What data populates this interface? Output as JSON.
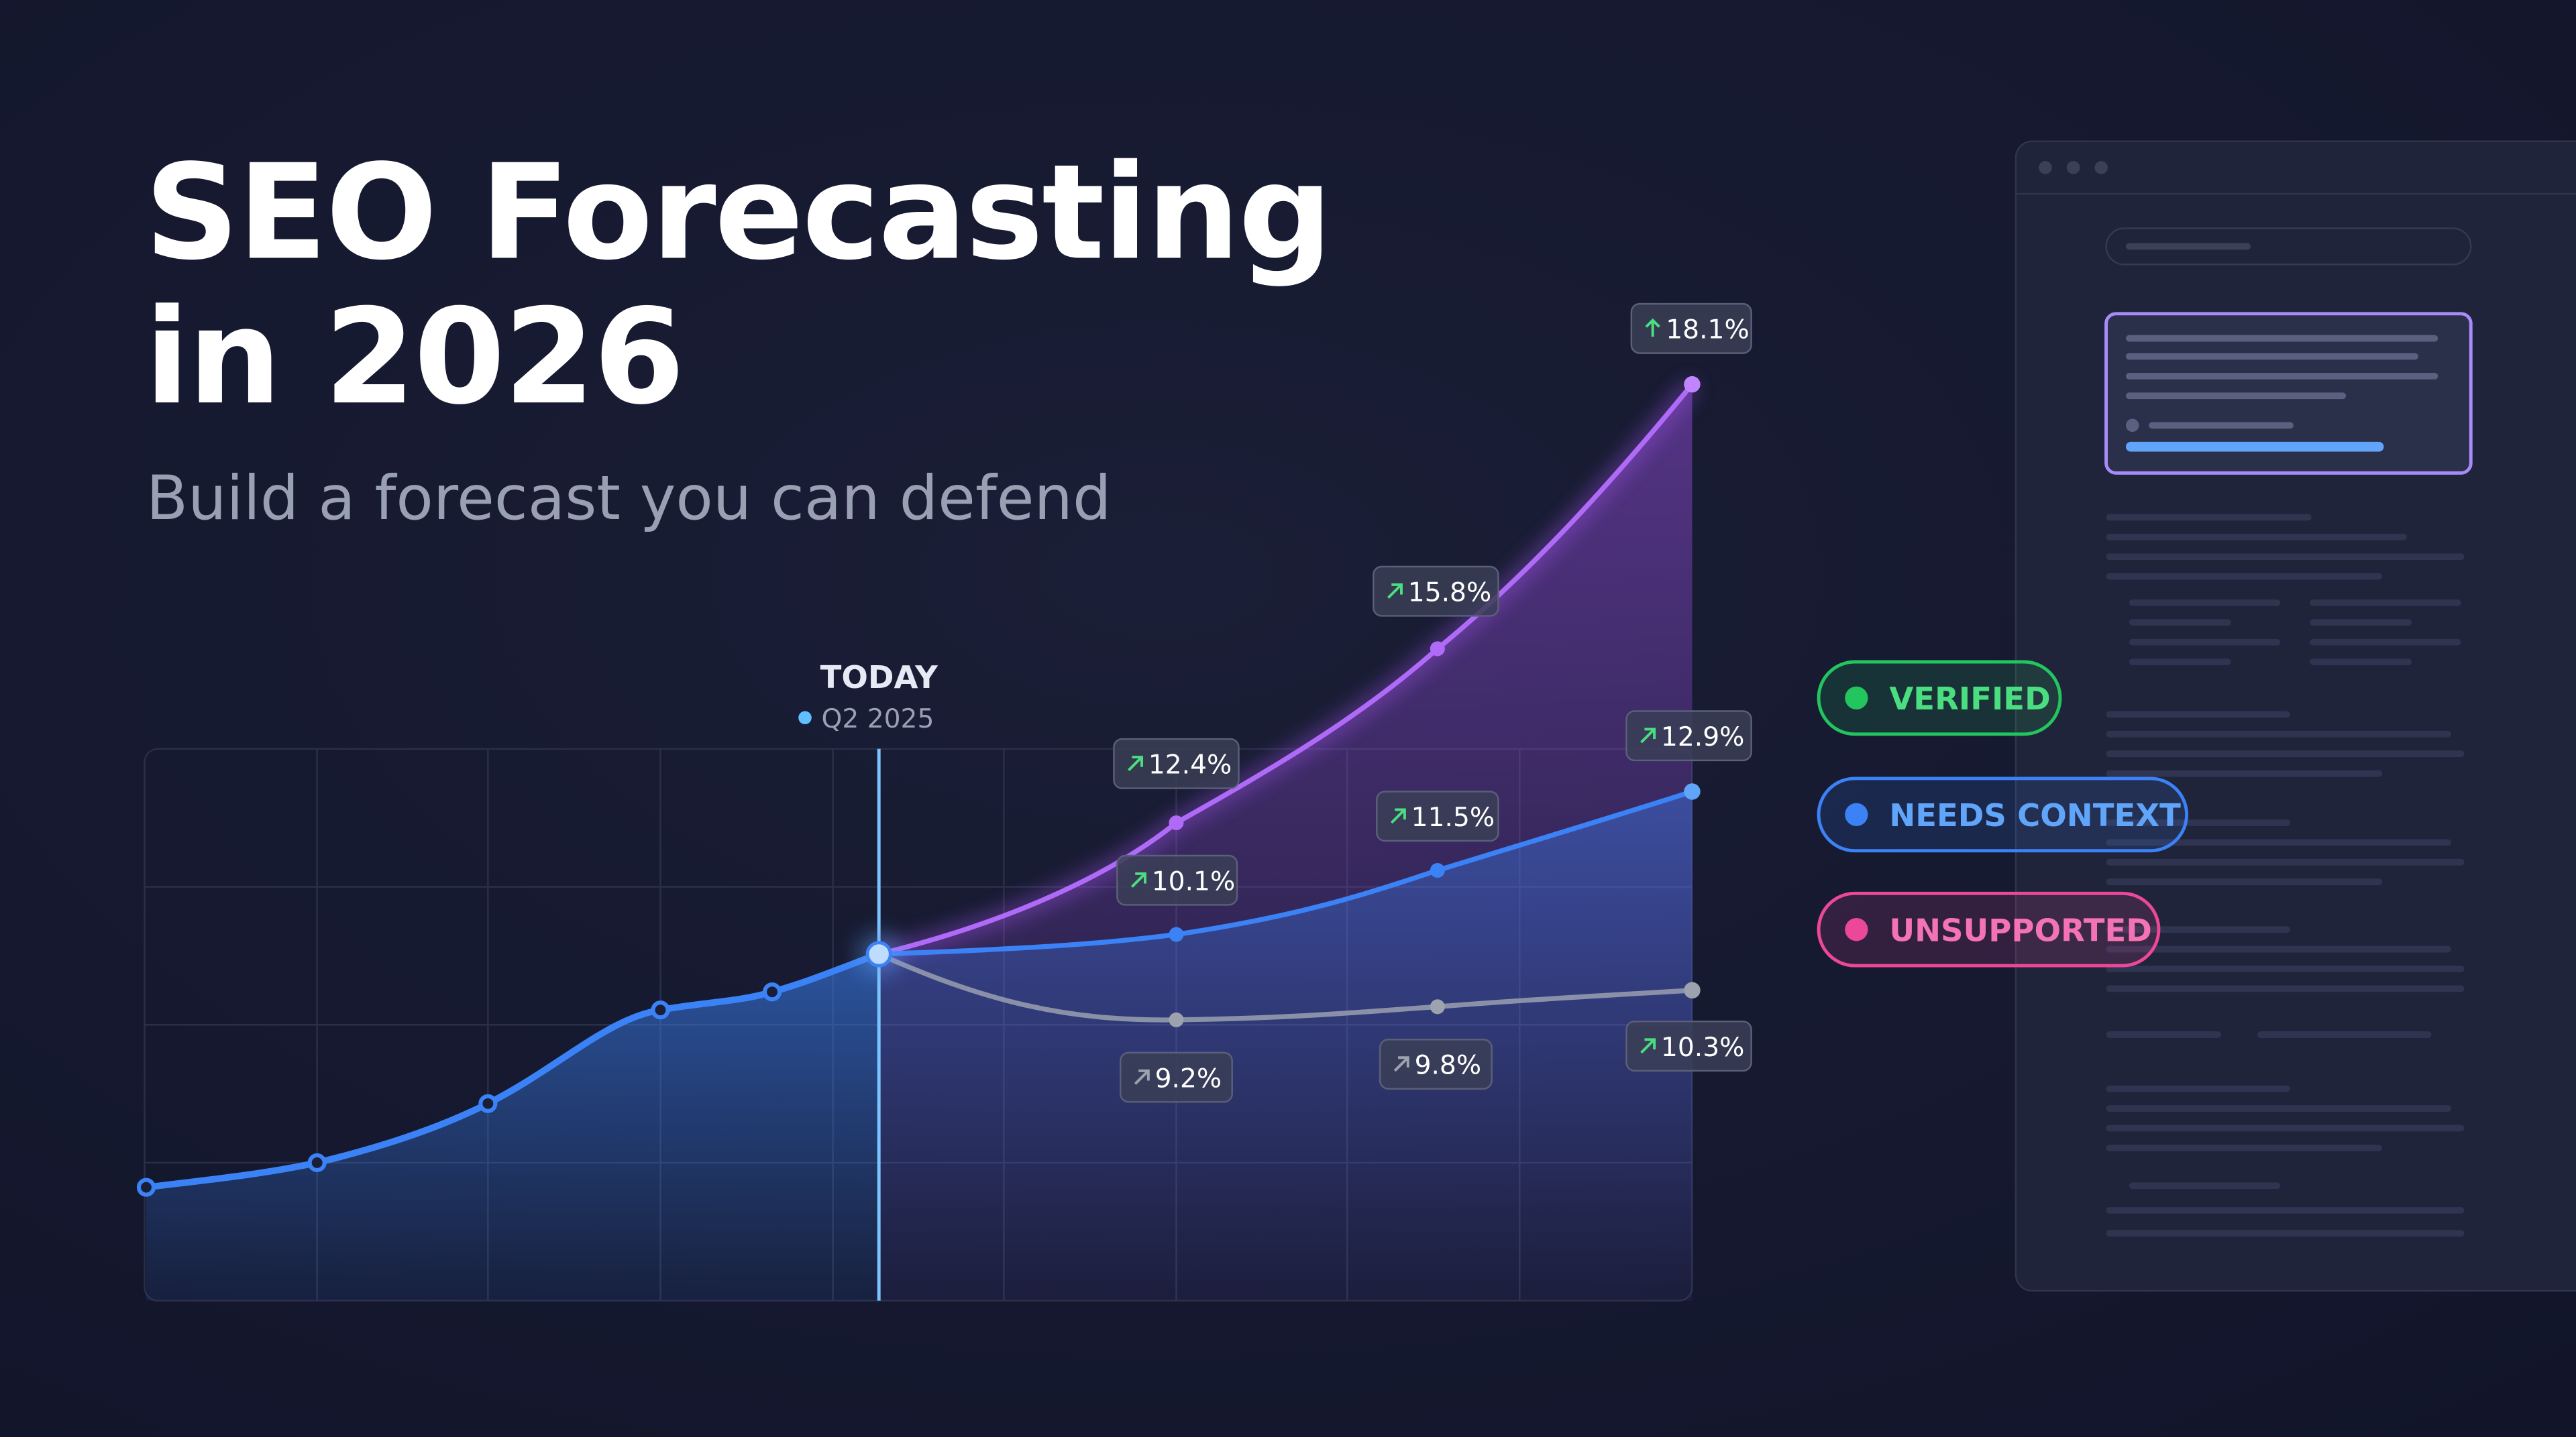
{
  "header": {
    "title_lines": [
      "SEO Forecasting",
      "in 2026"
    ],
    "subtitle": "Build a forecast you can defend"
  },
  "today": {
    "label": "TODAY",
    "date": "Q2 2025"
  },
  "callouts": [
    "18.1%",
    "15.8%",
    "12.4%",
    "12.9%",
    "11.5%",
    "10.1%",
    "9.2%",
    "9.8%",
    "10.3%"
  ],
  "badges": [
    "VERIFIED",
    "NEEDS CONTEXT",
    "UNSUPPORTED"
  ]
}
